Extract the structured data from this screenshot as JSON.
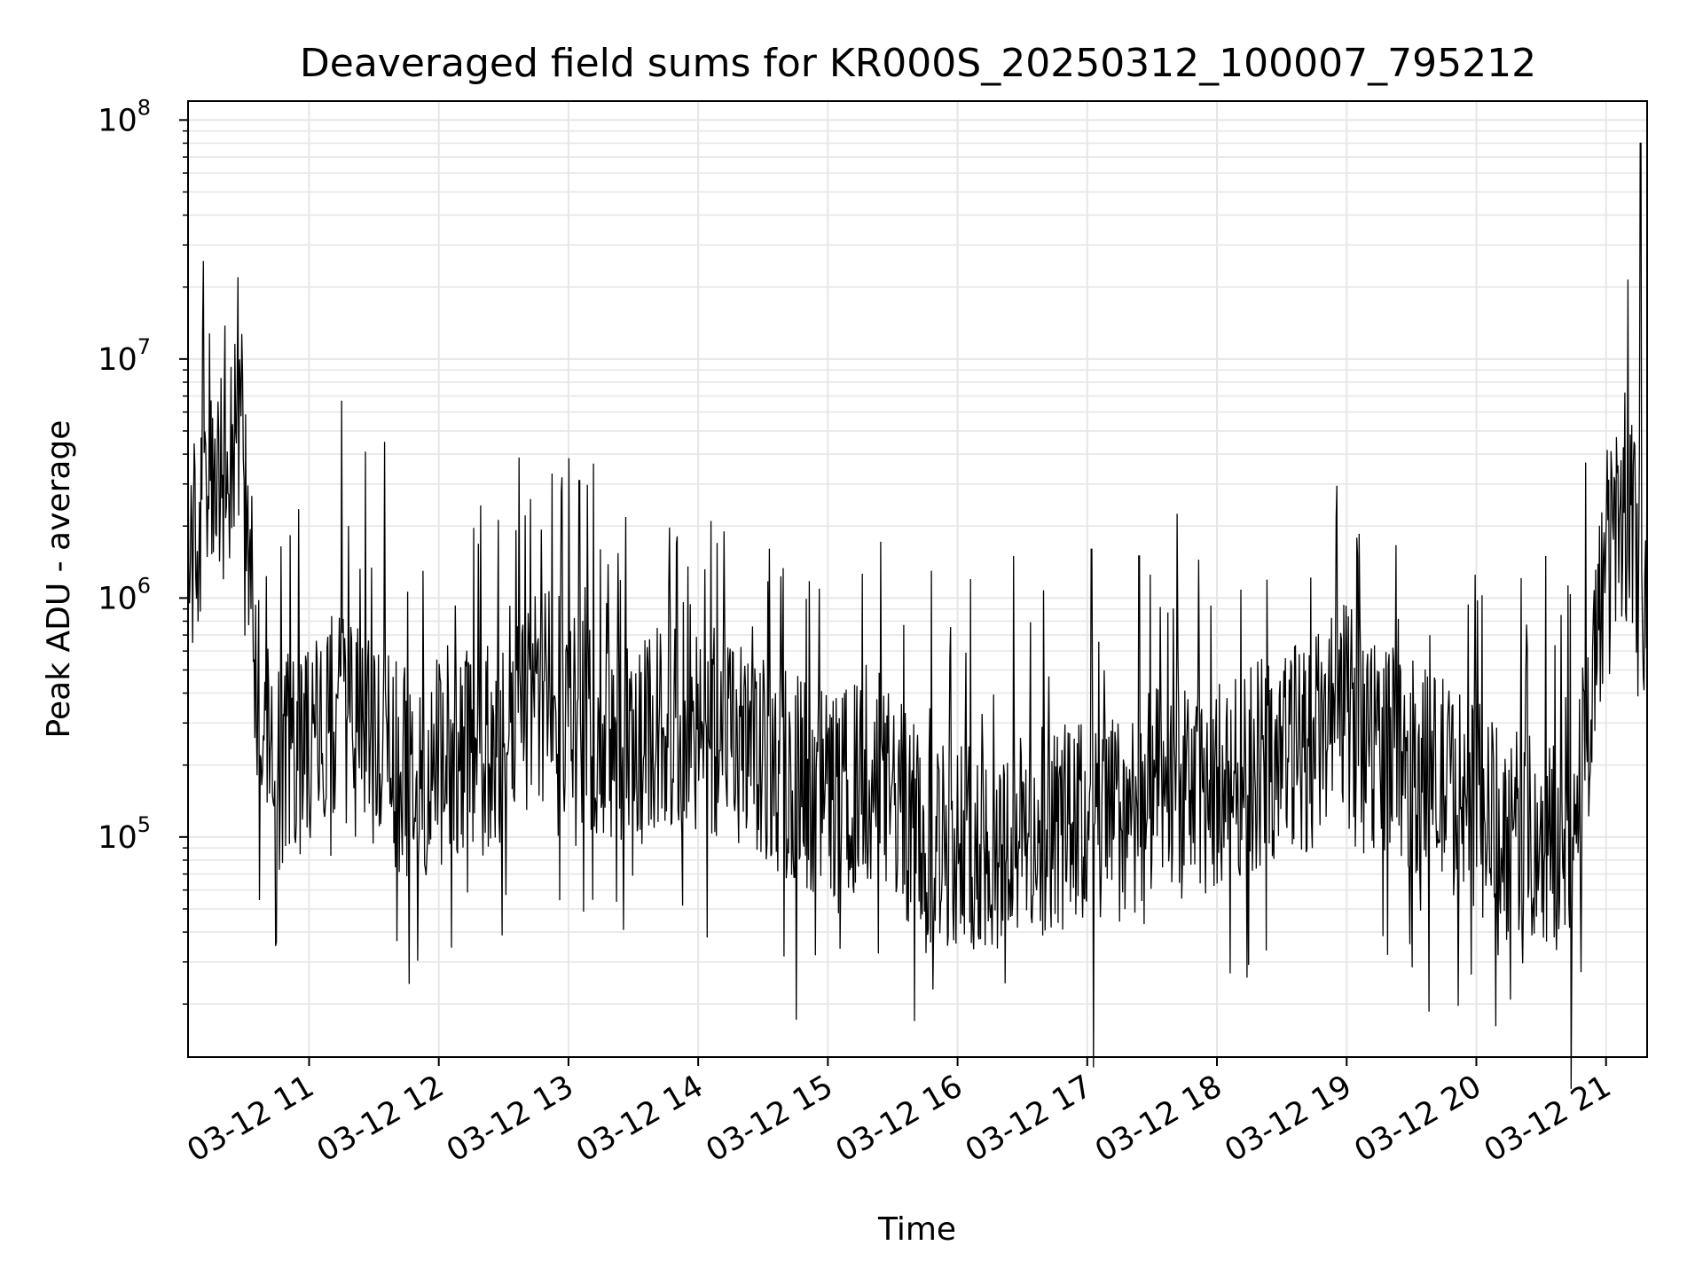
{
  "chart_data": {
    "type": "line",
    "title": "Deaveraged field sums for KR000S_20250312_100007_795212",
    "xlabel": "Time",
    "ylabel": "Peak ADU - average",
    "yscale": "log",
    "ylim": [
      12000,
      120000000
    ],
    "xlim": [
      "03-12 10:04",
      "03-12 21:19"
    ],
    "grid": true,
    "line_color": "#000000",
    "grid_color": "#e6e6e6",
    "x_ticks": [
      {
        "label": "03-12 11",
        "value": "03-12 11:00"
      },
      {
        "label": "03-12 12",
        "value": "03-12 12:00"
      },
      {
        "label": "03-12 13",
        "value": "03-12 13:00"
      },
      {
        "label": "03-12 14",
        "value": "03-12 14:00"
      },
      {
        "label": "03-12 15",
        "value": "03-12 15:00"
      },
      {
        "label": "03-12 16",
        "value": "03-12 16:00"
      },
      {
        "label": "03-12 17",
        "value": "03-12 17:00"
      },
      {
        "label": "03-12 18",
        "value": "03-12 18:00"
      },
      {
        "label": "03-12 19",
        "value": "03-12 19:00"
      },
      {
        "label": "03-12 20",
        "value": "03-12 20:00"
      },
      {
        "label": "03-12 21",
        "value": "03-12 21:00"
      }
    ],
    "y_ticks": [
      {
        "base": "10",
        "exp": "5",
        "value": 100000
      },
      {
        "base": "10",
        "exp": "6",
        "value": 1000000
      },
      {
        "base": "10",
        "exp": "7",
        "value": 10000000
      },
      {
        "base": "10",
        "exp": "8",
        "value": 100000000
      }
    ],
    "series": [
      {
        "x": [
          "03-12 10:04",
          "03-12 10:15",
          "03-12 10:25",
          "03-12 10:30",
          "03-12 10:35",
          "03-12 10:40",
          "03-12 10:45",
          "03-12 10:50",
          "03-12 11:00",
          "03-12 11:15",
          "03-12 11:30",
          "03-12 11:45",
          "03-12 12:00",
          "03-12 12:15",
          "03-12 12:30",
          "03-12 12:45",
          "03-12 13:00",
          "03-12 13:15",
          "03-12 13:30",
          "03-12 13:45",
          "03-12 14:00",
          "03-12 14:15",
          "03-12 14:30",
          "03-12 14:45",
          "03-12 15:00",
          "03-12 15:15",
          "03-12 15:30",
          "03-12 15:45",
          "03-12 16:00",
          "03-12 16:15",
          "03-12 16:30",
          "03-12 16:45",
          "03-12 17:00",
          "03-12 17:15",
          "03-12 17:30",
          "03-12 17:45",
          "03-12 18:00",
          "03-12 18:15",
          "03-12 18:30",
          "03-12 18:45",
          "03-12 19:00",
          "03-12 19:15",
          "03-12 19:30",
          "03-12 19:45",
          "03-12 20:00",
          "03-12 20:15",
          "03-12 20:30",
          "03-12 20:45",
          "03-12 20:55",
          "03-12 21:00",
          "03-12 21:05",
          "03-12 21:10",
          "03-12 21:15",
          "03-12 21:19"
        ],
        "y": [
          1500000,
          2500000,
          4000000,
          5000000,
          600000,
          250000,
          200000,
          220000,
          250000,
          300000,
          250000,
          180000,
          200000,
          220000,
          230000,
          400000,
          350000,
          250000,
          220000,
          300000,
          250000,
          250000,
          200000,
          180000,
          150000,
          160000,
          150000,
          90000,
          100000,
          90000,
          100000,
          110000,
          110000,
          120000,
          150000,
          150000,
          160000,
          200000,
          220000,
          250000,
          350000,
          250000,
          200000,
          170000,
          130000,
          100000,
          100000,
          80000,
          600000,
          1500000,
          2000000,
          2000000,
          1800000,
          900000
        ]
      }
    ]
  }
}
